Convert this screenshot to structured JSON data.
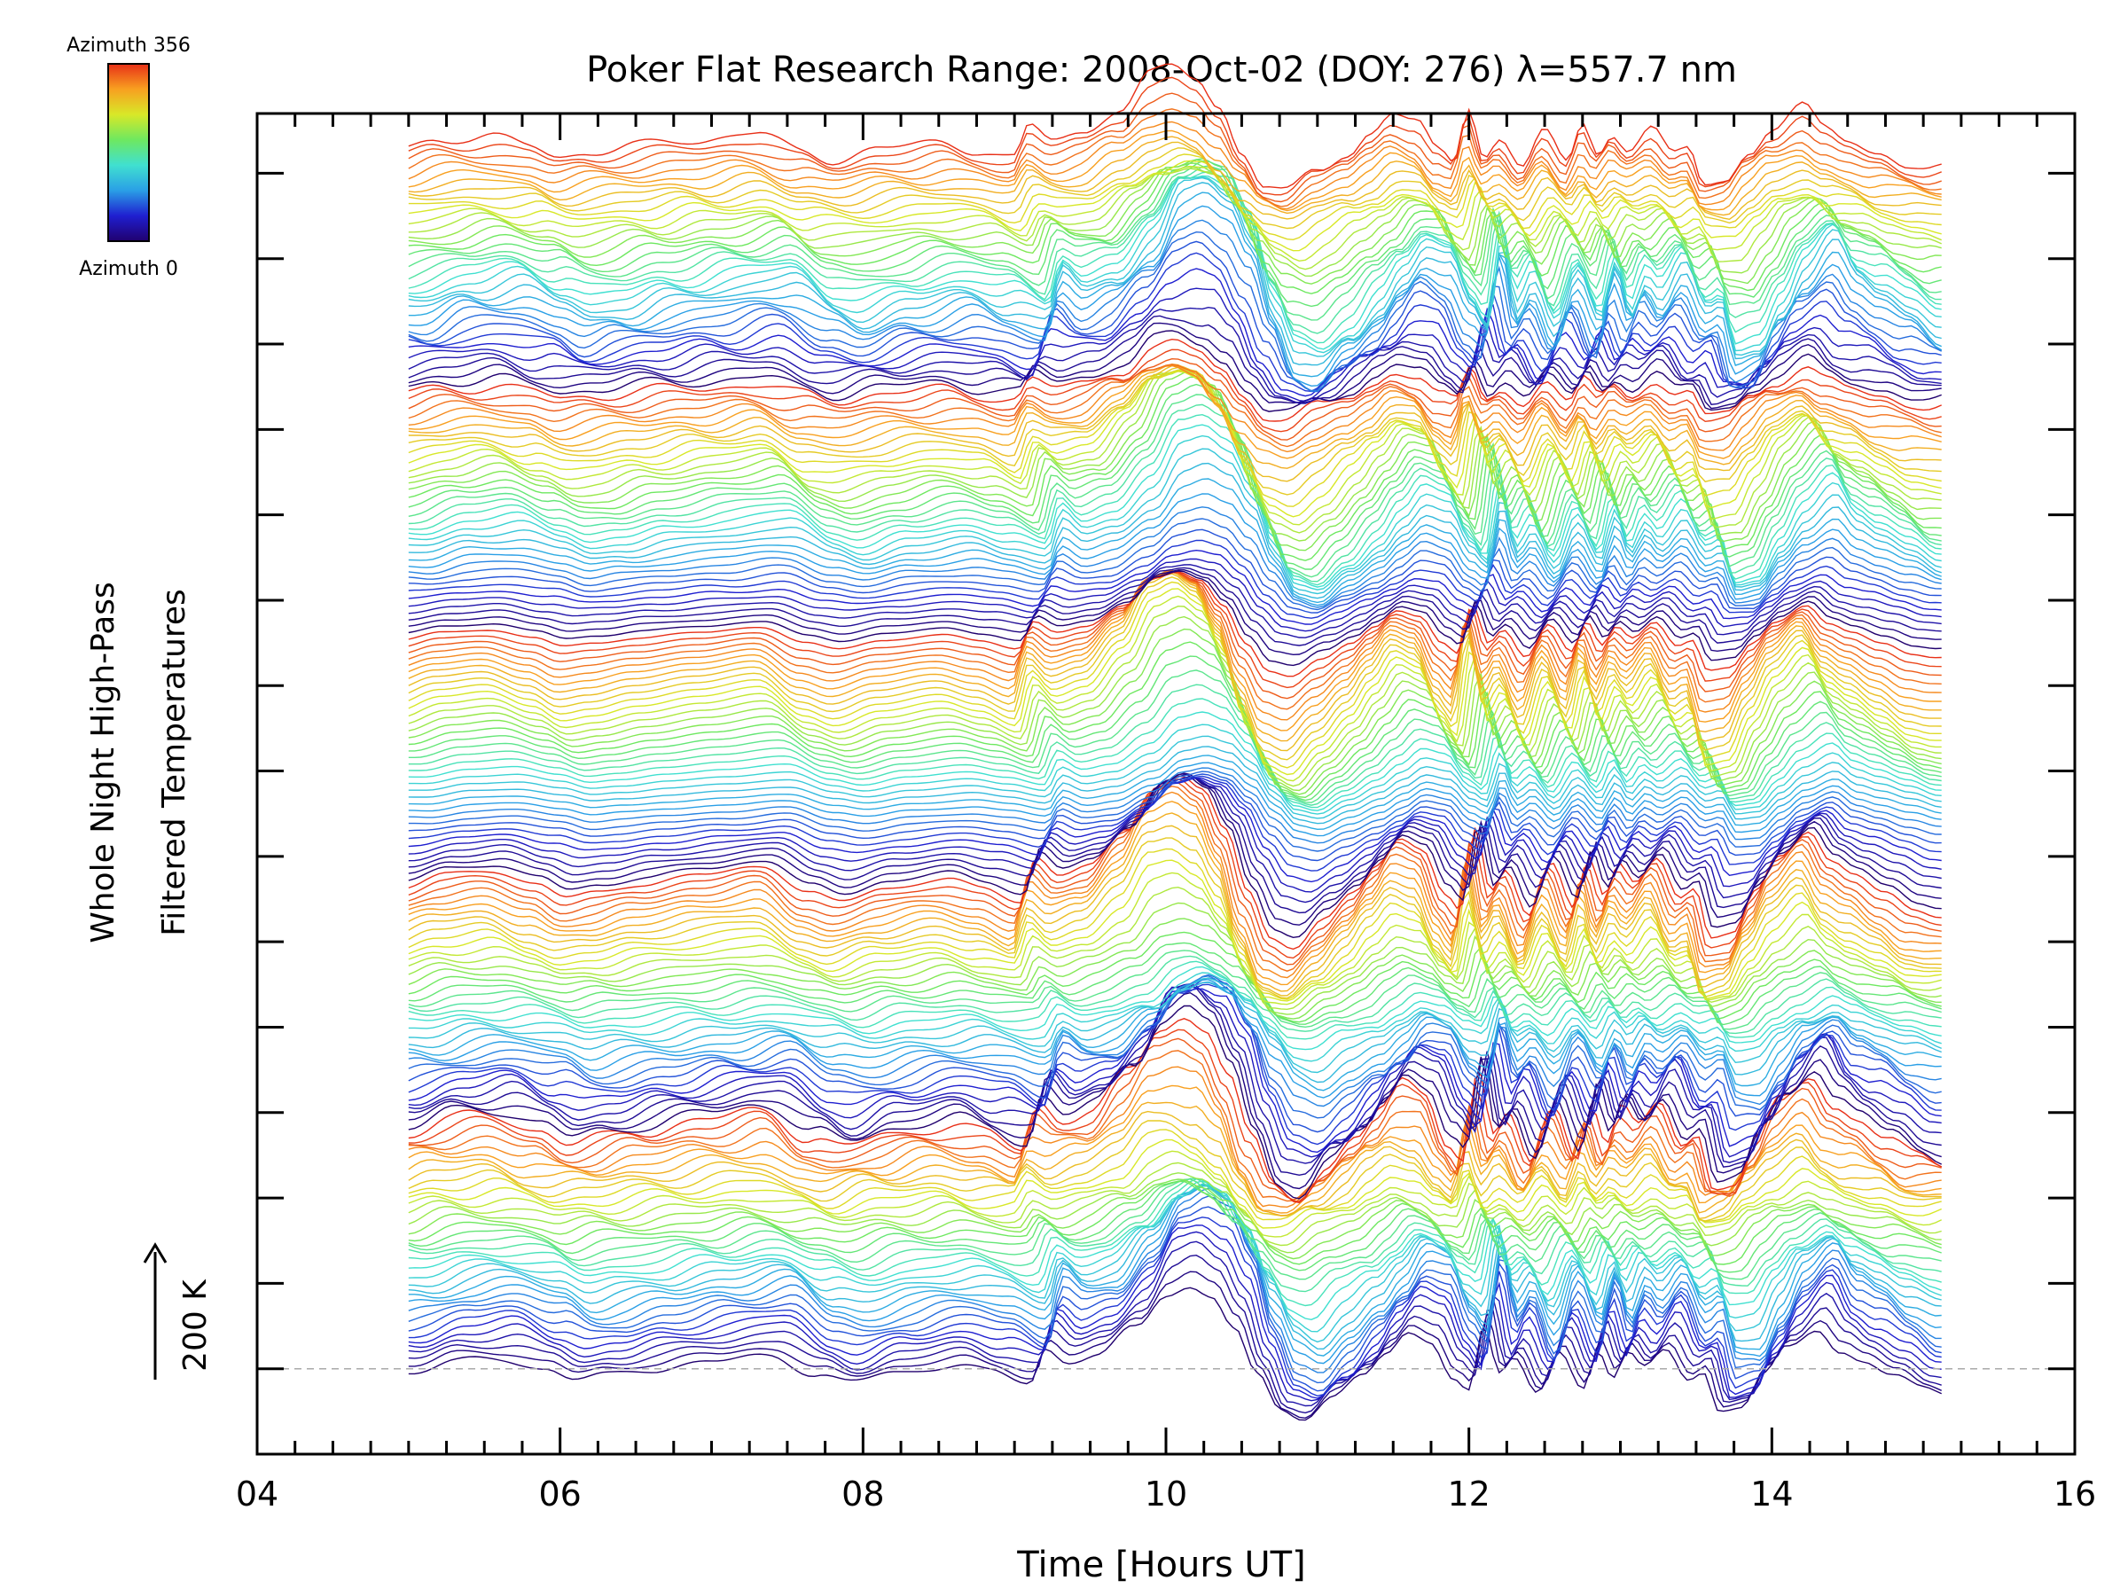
{
  "chart_data": {
    "type": "line",
    "title": "Poker Flat Research Range: 2008-Oct-02 (DOY: 276) λ=557.7 nm",
    "xlabel": "Time [Hours UT]",
    "ylabel_line1": "Whole Night High-Pass",
    "ylabel_line2": "Filtered Temperatures",
    "xlim": [
      4,
      16
    ],
    "x_ticks": [
      4,
      6,
      8,
      10,
      12,
      14,
      16
    ],
    "x_tick_labels": [
      "04",
      "06",
      "08",
      "10",
      "12",
      "14",
      "16"
    ],
    "x_minor_step": 0.25,
    "ylim_K": [
      -100,
      1470
    ],
    "y_tick_step_K": 100,
    "y_ticks_count": 15,
    "y_ticks_labeled": false,
    "baseline_K": 0,
    "baseline_style": "dashed-gray",
    "scale_bar_label": "200 K",
    "scale_bar_K": 200,
    "colorbar": {
      "top_label": "Azimuth 356",
      "bottom_label": "Azimuth 0",
      "azimuth_range": [
        0,
        356
      ],
      "colormap": "rainbow",
      "stops": [
        "#20006e",
        "#1f1fd0",
        "#2a9fe6",
        "#40e0d0",
        "#6ee860",
        "#d8e828",
        "#f8a020",
        "#e83018"
      ],
      "placement": "top-left"
    },
    "series_layout": {
      "count": 180,
      "vertical_offset_K": 8,
      "azimuth_cycle_length": 36,
      "x_start": 5.0,
      "x_end": 15.15
    },
    "base_profile": {
      "x": [
        5.0,
        5.3,
        5.6,
        5.9,
        6.1,
        6.3,
        6.6,
        7.0,
        7.4,
        7.7,
        7.9,
        8.2,
        8.6,
        8.85,
        9.1,
        9.2,
        9.35,
        9.55,
        9.8,
        10.0,
        10.15,
        10.3,
        10.45,
        10.6,
        10.75,
        10.9,
        11.1,
        11.3,
        11.45,
        11.6,
        11.75,
        11.9,
        12.0,
        12.1,
        12.2,
        12.3,
        12.45,
        12.6,
        12.75,
        12.85,
        12.95,
        13.05,
        13.15,
        13.3,
        13.45,
        13.55,
        13.65,
        13.8,
        13.95,
        14.1,
        14.3,
        14.45,
        14.6,
        14.8,
        15.0,
        15.15
      ],
      "y": [
        -5,
        10,
        15,
        0,
        -15,
        -10,
        0,
        10,
        20,
        -10,
        -20,
        -5,
        5,
        -5,
        -20,
        30,
        10,
        20,
        60,
        110,
        120,
        105,
        60,
        -10,
        -60,
        -70,
        -40,
        -10,
        20,
        50,
        40,
        -10,
        -30,
        60,
        -10,
        15,
        -35,
        25,
        -25,
        30,
        -15,
        20,
        0,
        30,
        -15,
        -5,
        -60,
        -55,
        -10,
        30,
        60,
        25,
        10,
        -10,
        -30,
        -35
      ]
    }
  }
}
